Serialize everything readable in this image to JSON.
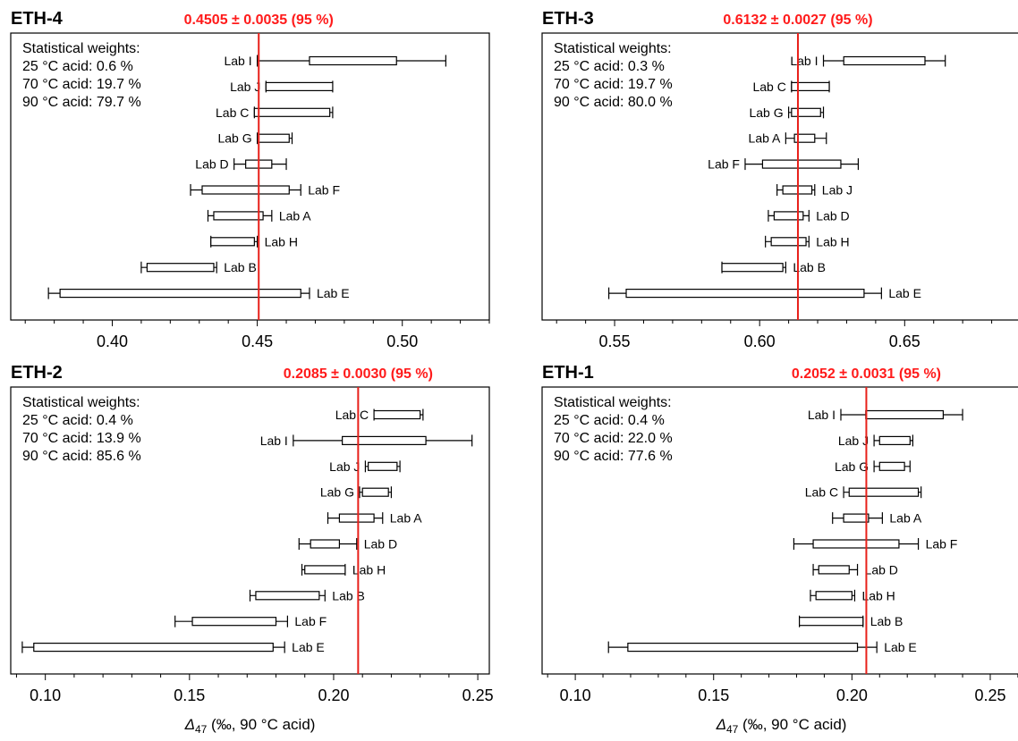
{
  "x_axis_label": "Δ47 (‰, 90 °C acid)",
  "chart_data": [
    {
      "type": "error-bar",
      "title": "ETH-4",
      "consensus": "0.4505 ± 0.0035 (95 %)",
      "consensus_value": 0.4505,
      "weights_title": "Statistical weights:",
      "weights": [
        "25 °C acid: 0.6 %",
        "70 °C acid: 19.7 %",
        "90 °C acid: 79.7 %"
      ],
      "xlim": [
        0.365,
        0.53
      ],
      "xticks": [
        "0.40",
        "0.45",
        "0.50"
      ],
      "xtick_values": [
        0.4,
        0.45,
        0.5
      ],
      "xlabel": "",
      "labs": [
        {
          "name": "Lab I",
          "whisker": [
            0.45,
            0.515
          ],
          "box": [
            0.468,
            0.498
          ],
          "label_side": "left"
        },
        {
          "name": "Lab J",
          "whisker": [
            0.453,
            0.476
          ],
          "box": [
            0.453,
            0.476
          ],
          "label_side": "left"
        },
        {
          "name": "Lab C",
          "whisker": [
            0.449,
            0.476
          ],
          "box": [
            0.449,
            0.475
          ],
          "label_side": "left"
        },
        {
          "name": "Lab G",
          "whisker": [
            0.45,
            0.462
          ],
          "box": [
            0.45,
            0.461
          ],
          "label_side": "left"
        },
        {
          "name": "Lab D",
          "whisker": [
            0.442,
            0.46
          ],
          "box": [
            0.446,
            0.455
          ],
          "label_side": "left"
        },
        {
          "name": "Lab F",
          "whisker": [
            0.427,
            0.465
          ],
          "box": [
            0.431,
            0.461
          ],
          "label_side": "right"
        },
        {
          "name": "Lab A",
          "whisker": [
            0.433,
            0.455
          ],
          "box": [
            0.435,
            0.452
          ],
          "label_side": "right"
        },
        {
          "name": "Lab H",
          "whisker": [
            0.434,
            0.45
          ],
          "box": [
            0.434,
            0.449
          ],
          "label_side": "right"
        },
        {
          "name": "Lab B",
          "whisker": [
            0.41,
            0.436
          ],
          "box": [
            0.412,
            0.435
          ],
          "label_side": "right"
        },
        {
          "name": "Lab E",
          "whisker": [
            0.378,
            0.468
          ],
          "box": [
            0.382,
            0.465
          ],
          "label_side": "right"
        }
      ]
    },
    {
      "type": "error-bar",
      "title": "ETH-3",
      "consensus": "0.6132 ± 0.0027 (95 %)",
      "consensus_value": 0.6132,
      "weights_title": "Statistical weights:",
      "weights": [
        "25 °C acid: 0.3 %",
        "70 °C acid: 19.7 %",
        "90 °C acid: 80.0 %"
      ],
      "xlim": [
        0.525,
        0.69
      ],
      "xticks": [
        "0.55",
        "0.60",
        "0.65"
      ],
      "xtick_values": [
        0.55,
        0.6,
        0.65
      ],
      "xlabel": "",
      "labs": [
        {
          "name": "Lab I",
          "whisker": [
            0.622,
            0.664
          ],
          "box": [
            0.629,
            0.657
          ],
          "label_side": "left"
        },
        {
          "name": "Lab C",
          "whisker": [
            0.611,
            0.624
          ],
          "box": [
            0.611,
            0.624
          ],
          "label_side": "left"
        },
        {
          "name": "Lab G",
          "whisker": [
            0.61,
            0.622
          ],
          "box": [
            0.611,
            0.621
          ],
          "label_side": "left"
        },
        {
          "name": "Lab A",
          "whisker": [
            0.609,
            0.623
          ],
          "box": [
            0.612,
            0.619
          ],
          "label_side": "left"
        },
        {
          "name": "Lab F",
          "whisker": [
            0.595,
            0.634
          ],
          "box": [
            0.601,
            0.628
          ],
          "label_side": "left"
        },
        {
          "name": "Lab J",
          "whisker": [
            0.606,
            0.619
          ],
          "box": [
            0.608,
            0.618
          ],
          "label_side": "right"
        },
        {
          "name": "Lab D",
          "whisker": [
            0.603,
            0.617
          ],
          "box": [
            0.605,
            0.615
          ],
          "label_side": "right"
        },
        {
          "name": "Lab H",
          "whisker": [
            0.602,
            0.617
          ],
          "box": [
            0.604,
            0.616
          ],
          "label_side": "right"
        },
        {
          "name": "Lab B",
          "whisker": [
            0.587,
            0.609
          ],
          "box": [
            0.587,
            0.608
          ],
          "label_side": "right"
        },
        {
          "name": "Lab E",
          "whisker": [
            0.548,
            0.642
          ],
          "box": [
            0.554,
            0.636
          ],
          "label_side": "right"
        }
      ]
    },
    {
      "type": "error-bar",
      "title": "ETH-2",
      "consensus": "0.2085 ± 0.0030 (95 %)",
      "consensus_value": 0.2085,
      "weights_title": "Statistical weights:",
      "weights": [
        "25 °C acid: 0.4 %",
        "70 °C acid: 13.9 %",
        "90 °C acid: 85.6 %"
      ],
      "xlim": [
        0.088,
        0.254
      ],
      "xticks": [
        "0.10",
        "0.15",
        "0.20",
        "0.25"
      ],
      "xtick_values": [
        0.1,
        0.15,
        0.2,
        0.25
      ],
      "xlabel": "Δ47 (‰, 90 °C acid)",
      "labs": [
        {
          "name": "Lab C",
          "whisker": [
            0.214,
            0.231
          ],
          "box": [
            0.214,
            0.23
          ],
          "label_side": "left"
        },
        {
          "name": "Lab I",
          "whisker": [
            0.186,
            0.248
          ],
          "box": [
            0.203,
            0.232
          ],
          "label_side": "left"
        },
        {
          "name": "Lab J",
          "whisker": [
            0.211,
            0.223
          ],
          "box": [
            0.212,
            0.222
          ],
          "label_side": "left"
        },
        {
          "name": "Lab G",
          "whisker": [
            0.209,
            0.22
          ],
          "box": [
            0.21,
            0.219
          ],
          "label_side": "left"
        },
        {
          "name": "Lab A",
          "whisker": [
            0.198,
            0.217
          ],
          "box": [
            0.202,
            0.214
          ],
          "label_side": "right"
        },
        {
          "name": "Lab D",
          "whisker": [
            0.188,
            0.208
          ],
          "box": [
            0.192,
            0.202
          ],
          "label_side": "right"
        },
        {
          "name": "Lab H",
          "whisker": [
            0.189,
            0.204
          ],
          "box": [
            0.19,
            0.204
          ],
          "label_side": "right"
        },
        {
          "name": "Lab B",
          "whisker": [
            0.171,
            0.197
          ],
          "box": [
            0.173,
            0.195
          ],
          "label_side": "right"
        },
        {
          "name": "Lab F",
          "whisker": [
            0.145,
            0.184
          ],
          "box": [
            0.151,
            0.18
          ],
          "label_side": "right"
        },
        {
          "name": "Lab E",
          "whisker": [
            0.092,
            0.183
          ],
          "box": [
            0.096,
            0.179
          ],
          "label_side": "right"
        }
      ]
    },
    {
      "type": "error-bar",
      "title": "ETH-1",
      "consensus": "0.2052 ± 0.0031 (95 %)",
      "consensus_value": 0.2052,
      "weights_title": "Statistical weights:",
      "weights": [
        "25 °C acid: 0.4 %",
        "70 °C acid: 22.0 %",
        "90 °C acid: 77.6 %"
      ],
      "xlim": [
        0.088,
        0.261
      ],
      "xticks": [
        "0.10",
        "0.15",
        "0.20",
        "0.25"
      ],
      "xtick_values": [
        0.1,
        0.15,
        0.2,
        0.25
      ],
      "xlabel": "Δ47 (‰, 90 °C acid)",
      "labs": [
        {
          "name": "Lab I",
          "whisker": [
            0.196,
            0.24
          ],
          "box": [
            0.205,
            0.233
          ],
          "label_side": "left"
        },
        {
          "name": "Lab J",
          "whisker": [
            0.208,
            0.222
          ],
          "box": [
            0.21,
            0.221
          ],
          "label_side": "left"
        },
        {
          "name": "Lab G",
          "whisker": [
            0.208,
            0.221
          ],
          "box": [
            0.21,
            0.219
          ],
          "label_side": "left"
        },
        {
          "name": "Lab C",
          "whisker": [
            0.197,
            0.225
          ],
          "box": [
            0.199,
            0.224
          ],
          "label_side": "left"
        },
        {
          "name": "Lab A",
          "whisker": [
            0.193,
            0.211
          ],
          "box": [
            0.197,
            0.206
          ],
          "label_side": "right"
        },
        {
          "name": "Lab F",
          "whisker": [
            0.179,
            0.224
          ],
          "box": [
            0.186,
            0.217
          ],
          "label_side": "right"
        },
        {
          "name": "Lab D",
          "whisker": [
            0.186,
            0.202
          ],
          "box": [
            0.188,
            0.199
          ],
          "label_side": "right"
        },
        {
          "name": "Lab H",
          "whisker": [
            0.185,
            0.201
          ],
          "box": [
            0.187,
            0.2
          ],
          "label_side": "right"
        },
        {
          "name": "Lab B",
          "whisker": [
            0.181,
            0.204
          ],
          "box": [
            0.181,
            0.204
          ],
          "label_side": "right"
        },
        {
          "name": "Lab E",
          "whisker": [
            0.112,
            0.209
          ],
          "box": [
            0.119,
            0.202
          ],
          "label_side": "right"
        }
      ]
    }
  ]
}
